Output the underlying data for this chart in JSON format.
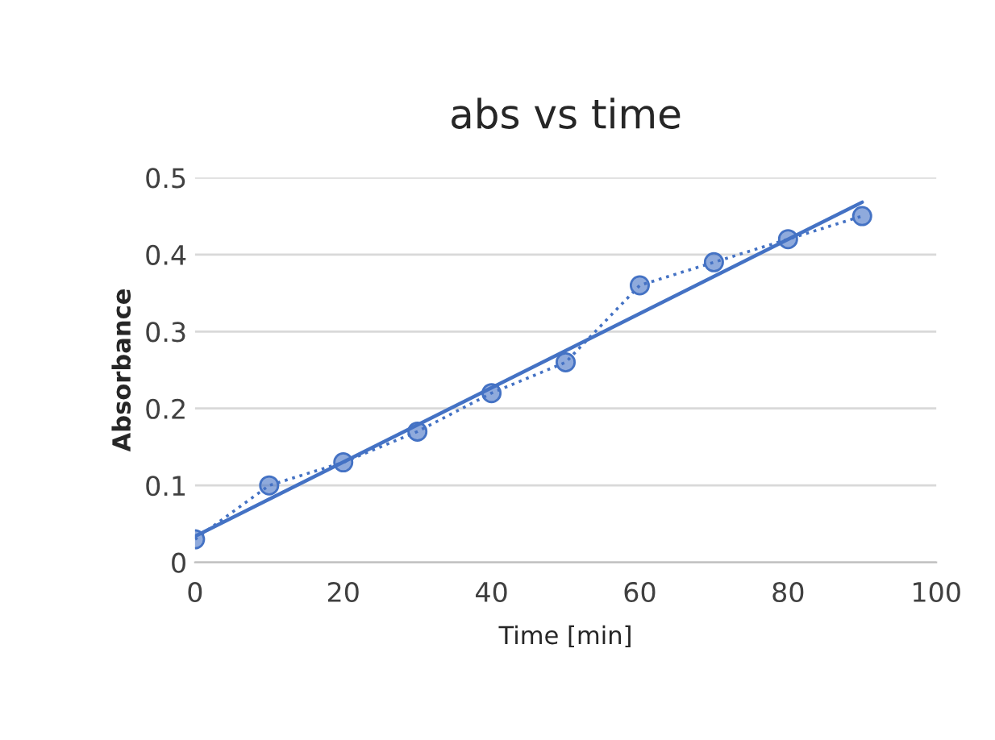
{
  "chart_data": {
    "type": "line",
    "title": "abs vs time",
    "xlabel": "Time [min]",
    "ylabel": "Absorbance",
    "xlim": [
      0,
      100
    ],
    "xticks": [
      0,
      20,
      40,
      60,
      80,
      100
    ],
    "ylim": [
      0,
      0.5
    ],
    "yticks": [
      0,
      0.1,
      0.2,
      0.3,
      0.4,
      0.5
    ],
    "grid": "y",
    "legend": false,
    "series": [
      {
        "color": "#4472c4",
        "marker": "circle",
        "line_style": "dotted",
        "x": [
          0,
          10,
          20,
          30,
          40,
          50,
          60,
          70,
          80,
          90
        ],
        "values": [
          0.03,
          0.1,
          0.13,
          0.17,
          0.22,
          0.26,
          0.36,
          0.39,
          0.42,
          0.45
        ]
      },
      {
        "color": "#4472c4",
        "marker": "none",
        "line_style": "solid",
        "x": [
          0,
          90
        ],
        "values": [
          0.034,
          0.468
        ]
      }
    ]
  }
}
